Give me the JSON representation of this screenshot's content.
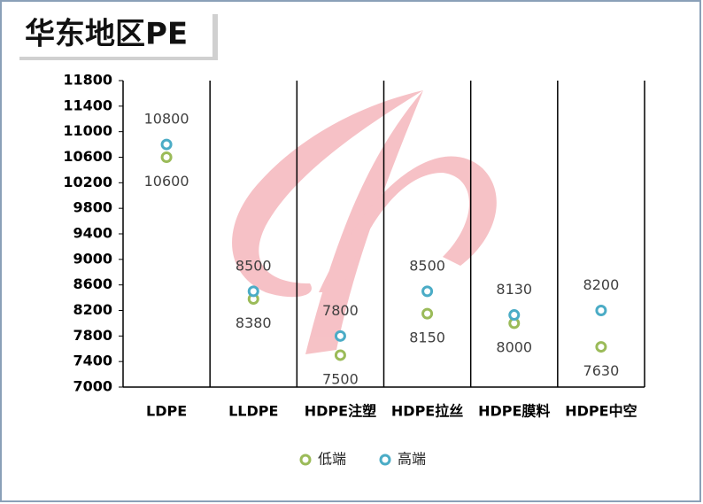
{
  "chart_data": {
    "type": "dot",
    "title": "华东地区PE",
    "categories": [
      "LDPE",
      "LLDPE",
      "HDPE注塑",
      "HDPE拉丝",
      "HDPE膜料",
      "HDPE中空"
    ],
    "series": [
      {
        "name": "低端",
        "color": "#9bbb59",
        "values": [
          10600,
          8380,
          7500,
          8150,
          8000,
          7630
        ]
      },
      {
        "name": "高端",
        "color": "#4bacc6",
        "values": [
          10800,
          8500,
          7800,
          8500,
          8130,
          8200
        ]
      }
    ],
    "ylim": [
      7000,
      11800
    ],
    "yticks": [
      7000,
      7400,
      7800,
      8200,
      8600,
      9000,
      9400,
      9800,
      10200,
      10600,
      11000,
      11400,
      11800
    ],
    "legend": "bottom"
  }
}
